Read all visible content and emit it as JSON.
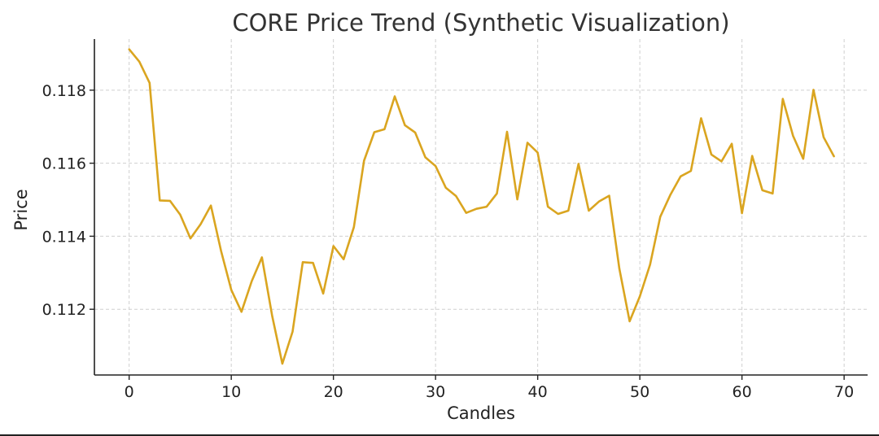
{
  "chart_data": {
    "type": "line",
    "title": "CORE Price Trend (Synthetic Visualization)",
    "xlabel": "Candles",
    "ylabel": "Price",
    "xlim": [
      -3.4,
      72.3
    ],
    "ylim": [
      0.1102,
      0.1194
    ],
    "xticks": [
      0,
      10,
      20,
      30,
      40,
      50,
      60,
      70
    ],
    "xtick_labels": [
      "0",
      "10",
      "20",
      "30",
      "40",
      "50",
      "60",
      "70"
    ],
    "yticks": [
      0.112,
      0.114,
      0.116,
      0.118
    ],
    "ytick_labels": [
      "0.112",
      "0.114",
      "0.116",
      "0.118"
    ],
    "grid": true,
    "series": [
      {
        "name": "CORE",
        "color": "#DAA520",
        "x": [
          0,
          1,
          2,
          3,
          4,
          5,
          6,
          7,
          8,
          9,
          10,
          11,
          12,
          13,
          14,
          15,
          16,
          17,
          18,
          19,
          20,
          21,
          22,
          23,
          24,
          25,
          26,
          27,
          28,
          29,
          30,
          31,
          32,
          33,
          34,
          35,
          36,
          37,
          38,
          39,
          40,
          41,
          42,
          43,
          44,
          45,
          46,
          47,
          48,
          49,
          50,
          51,
          52,
          53,
          54,
          55,
          56,
          57,
          58,
          59,
          60,
          61,
          62,
          63,
          64,
          65,
          66,
          67,
          68,
          69
        ],
        "values": [
          0.11912,
          0.11878,
          0.1182,
          0.11498,
          0.11497,
          0.11459,
          0.11394,
          0.11433,
          0.11484,
          0.1136,
          0.11253,
          0.11193,
          0.11277,
          0.11342,
          0.11182,
          0.11051,
          0.11139,
          0.11329,
          0.11327,
          0.11243,
          0.11373,
          0.11337,
          0.11425,
          0.11607,
          0.11685,
          0.11693,
          0.11783,
          0.11704,
          0.11684,
          0.11616,
          0.11592,
          0.11533,
          0.1151,
          0.11464,
          0.11475,
          0.11481,
          0.11517,
          0.11686,
          0.11501,
          0.11656,
          0.11629,
          0.11481,
          0.11461,
          0.1147,
          0.11598,
          0.1147,
          0.11495,
          0.11511,
          0.11311,
          0.11167,
          0.11235,
          0.11322,
          0.11453,
          0.11514,
          0.11564,
          0.11579,
          0.11723,
          0.11624,
          0.11605,
          0.11653,
          0.11463,
          0.1162,
          0.11526,
          0.11517,
          0.11776,
          0.11675,
          0.11612,
          0.11801,
          0.11671,
          0.11619
        ]
      }
    ]
  }
}
